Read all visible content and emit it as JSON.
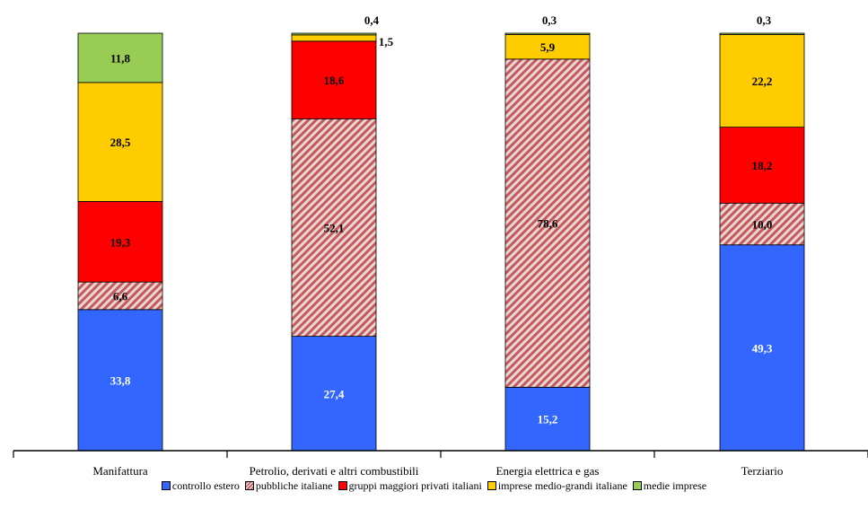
{
  "chart_data": {
    "type": "bar",
    "stacked": true,
    "categories": [
      "Manifattura",
      "Petrolio, derivati e altri combustibili",
      "Energia elettrica e gas",
      "Terziario"
    ],
    "series": [
      {
        "name": "controllo estero",
        "color": "#3366ff",
        "pattern": "solid",
        "label_color": "#ffffff",
        "values": [
          33.8,
          27.4,
          15.2,
          49.3
        ],
        "labels": [
          "33,8",
          "27,4",
          "15,2",
          "49,3"
        ]
      },
      {
        "name": "pubbliche italiane",
        "color": "#d06060",
        "pattern": "hatched",
        "label_color": "#000000",
        "values": [
          6.6,
          52.1,
          78.6,
          10.0
        ],
        "labels": [
          "6,6",
          "52,1",
          "78,6",
          "10,0"
        ]
      },
      {
        "name": "gruppi maggiori privati italiani",
        "color": "#ff0000",
        "pattern": "solid",
        "label_color": "#000000",
        "values": [
          19.3,
          18.6,
          0,
          18.2
        ],
        "labels": [
          "19,3",
          "18,6",
          "",
          "18,2"
        ]
      },
      {
        "name": "imprese medio-grandi italiane",
        "color": "#ffcc00",
        "pattern": "solid",
        "label_color": "#000000",
        "values": [
          28.5,
          1.5,
          5.9,
          22.2
        ],
        "labels": [
          "28,5",
          "1,5",
          "5,9",
          "22,2"
        ]
      },
      {
        "name": "medie imprese",
        "color": "#99cc55",
        "pattern": "solid",
        "label_color": "#000000",
        "values": [
          11.8,
          0.4,
          0.3,
          0.3
        ],
        "labels": [
          "11,8",
          "0,4",
          "0,3",
          "0,3"
        ]
      }
    ],
    "ylim": [
      0,
      100
    ],
    "grid": false,
    "legend_position": "bottom"
  }
}
